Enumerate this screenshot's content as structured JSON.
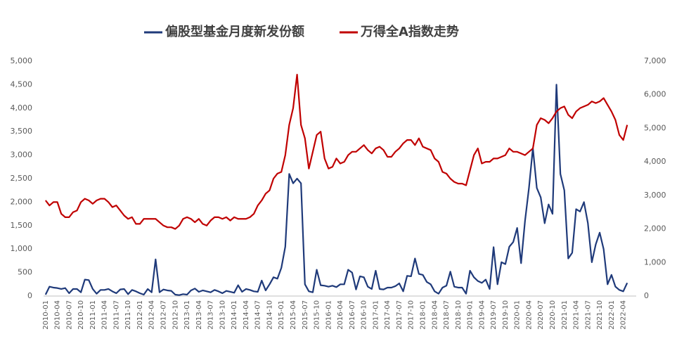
{
  "chart_data": {
    "type": "line",
    "legend_position": "top",
    "categories": [
      "2010-01",
      null,
      null,
      "2010-04",
      null,
      null,
      "2010-07",
      null,
      null,
      "2010-10",
      null,
      null,
      "2011-01",
      null,
      null,
      "2011-04",
      null,
      null,
      "2011-07",
      null,
      null,
      "2011-10",
      null,
      null,
      "2012-01",
      null,
      null,
      "2012-04",
      null,
      null,
      "2012-07",
      null,
      null,
      "2012-10",
      null,
      null,
      "2013-01",
      null,
      null,
      "2013-04",
      null,
      null,
      "2013-07",
      null,
      null,
      "2013-10",
      null,
      null,
      "2014-01",
      null,
      null,
      "2014-04",
      null,
      null,
      "2014-07",
      null,
      null,
      "2014-10",
      null,
      null,
      "2015-01",
      null,
      null,
      "2015-04",
      null,
      null,
      "2015-07",
      null,
      null,
      "2015-10",
      null,
      null,
      "2016-01",
      null,
      null,
      "2016-04",
      null,
      null,
      "2016-07",
      null,
      null,
      "2016-10",
      null,
      null,
      "2017-01",
      null,
      null,
      "2017-04",
      null,
      null,
      "2017-07",
      null,
      null,
      "2017-10",
      null,
      null,
      "2018-01",
      null,
      null,
      "2018-04",
      null,
      null,
      "2018-07",
      null,
      null,
      "2018-10",
      null,
      null,
      "2019-01",
      null,
      null,
      "2019-04",
      null,
      null,
      "2019-07",
      null,
      null,
      "2019-10",
      null,
      null,
      "2020-01",
      null,
      null,
      "2020-04",
      null,
      null,
      "2020-07",
      null,
      null,
      "2020-10",
      null,
      null,
      "2021-01",
      null,
      null,
      "2021-04",
      null,
      null,
      "2021-07",
      null,
      null,
      "2021-10",
      null,
      null,
      "2022-01",
      null,
      null,
      "2022-04",
      null
    ],
    "series": [
      {
        "name": "偏股型基金月度新发份额",
        "color": "#1f3a7a",
        "axis": "y",
        "values": [
          30,
          200,
          180,
          170,
          150,
          170,
          60,
          150,
          150,
          80,
          350,
          340,
          150,
          50,
          130,
          130,
          150,
          100,
          60,
          140,
          150,
          40,
          130,
          100,
          60,
          30,
          150,
          80,
          780,
          80,
          140,
          120,
          110,
          30,
          20,
          40,
          30,
          120,
          160,
          90,
          120,
          100,
          80,
          130,
          100,
          60,
          110,
          90,
          70,
          230,
          90,
          150,
          130,
          100,
          90,
          330,
          120,
          250,
          400,
          370,
          600,
          1050,
          2600,
          2400,
          2500,
          2400,
          250,
          100,
          80,
          560,
          230,
          220,
          200,
          220,
          190,
          250,
          250,
          560,
          500,
          140,
          420,
          400,
          200,
          150,
          540,
          150,
          140,
          180,
          180,
          210,
          270,
          100,
          430,
          420,
          800,
          470,
          450,
          300,
          250,
          100,
          50,
          180,
          220,
          520,
          200,
          180,
          180,
          50,
          540,
          400,
          320,
          280,
          350,
          150,
          1040,
          250,
          720,
          680,
          1050,
          1150,
          1450,
          700,
          1600,
          2300,
          3150,
          2300,
          2100,
          1550,
          1950,
          1750,
          4500,
          2600,
          2250,
          800,
          920,
          1850,
          1800,
          2000,
          1550,
          720,
          1100,
          1350,
          1000,
          250,
          450,
          200,
          130,
          100,
          280
        ]
      },
      {
        "name": "万得全A指数走势",
        "color": "#c00000",
        "axis": "y2",
        "values": [
          2850,
          2700,
          2800,
          2800,
          2450,
          2350,
          2350,
          2500,
          2550,
          2800,
          2900,
          2850,
          2750,
          2850,
          2900,
          2900,
          2800,
          2650,
          2700,
          2550,
          2400,
          2300,
          2350,
          2150,
          2150,
          2300,
          2300,
          2300,
          2300,
          2200,
          2100,
          2050,
          2050,
          2000,
          2100,
          2300,
          2350,
          2300,
          2200,
          2300,
          2150,
          2100,
          2250,
          2350,
          2350,
          2300,
          2350,
          2250,
          2350,
          2300,
          2300,
          2300,
          2350,
          2450,
          2700,
          2850,
          3050,
          3150,
          3500,
          3650,
          3700,
          4200,
          5100,
          5600,
          6600,
          5100,
          4700,
          3800,
          4300,
          4800,
          4900,
          4100,
          3800,
          3850,
          4100,
          3950,
          4000,
          4200,
          4300,
          4300,
          4400,
          4500,
          4350,
          4250,
          4400,
          4450,
          4350,
          4150,
          4150,
          4300,
          4400,
          4550,
          4650,
          4650,
          4500,
          4700,
          4450,
          4400,
          4350,
          4100,
          4000,
          3700,
          3650,
          3500,
          3400,
          3350,
          3350,
          3300,
          3750,
          4200,
          4400,
          3950,
          4000,
          4000,
          4100,
          4100,
          4150,
          4200,
          4400,
          4300,
          4300,
          4250,
          4200,
          4300,
          4400,
          5100,
          5300,
          5250,
          5150,
          5300,
          5500,
          5600,
          5650,
          5400,
          5300,
          5500,
          5600,
          5650,
          5700,
          5800,
          5750,
          5800,
          5900,
          5700,
          5500,
          5250,
          4800,
          4650,
          5100
        ]
      }
    ],
    "ylim": [
      0,
      5000
    ],
    "yticks": [
      0,
      500,
      {
        "value": 1000,
        "label": "1,000"
      },
      {
        "value": 1500,
        "label": "1,500"
      },
      {
        "value": 2000,
        "label": "2,000"
      },
      {
        "value": 2500,
        "label": "2,500"
      },
      {
        "value": 3000,
        "label": "3,000"
      },
      {
        "value": 3500,
        "label": "3,500"
      },
      {
        "value": 4000,
        "label": "4,000"
      },
      {
        "value": 4500,
        "label": "4,500"
      },
      {
        "value": 5000,
        "label": "5,000"
      }
    ],
    "y2lim": [
      0,
      7000
    ],
    "y2ticks": [
      0,
      {
        "value": 1000,
        "label": "1,000"
      },
      {
        "value": 2000,
        "label": "2,000"
      },
      {
        "value": 3000,
        "label": "3,000"
      },
      {
        "value": 4000,
        "label": "4,000"
      },
      {
        "value": 5000,
        "label": "5,000"
      },
      {
        "value": 6000,
        "label": "6,000"
      },
      {
        "value": 7000,
        "label": "7,000"
      }
    ],
    "grid": false
  }
}
